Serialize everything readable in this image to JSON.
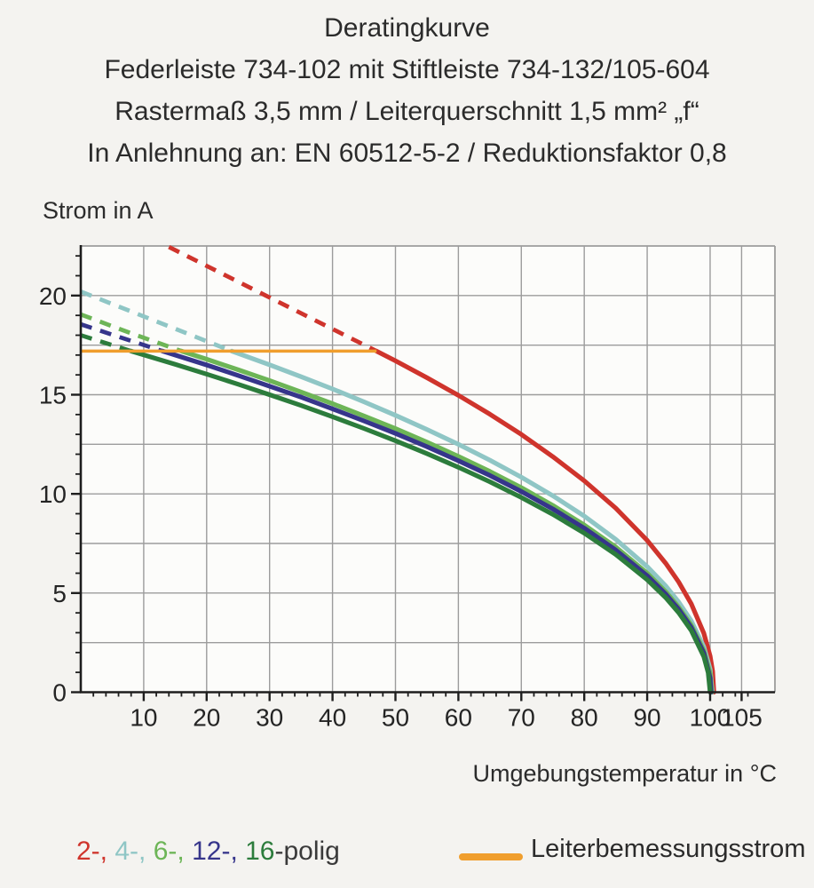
{
  "header": {
    "line1": "Deratingkurve",
    "line2": "Federleiste 734-102 mit Stiftleiste 734-132/105-604",
    "line3": "Rastermaß 3,5 mm / Leiterquerschnitt 1,5 mm² „f“",
    "line4": "In Anlehnung an: EN 60512-5-2 / Reduktionsfaktor 0,8"
  },
  "chart_data": {
    "type": "line",
    "title": "Deratingkurve",
    "xlabel": "Umgebungstemperatur in °C",
    "ylabel": "Strom in A",
    "xlim": [
      0,
      110.3
    ],
    "ylim": [
      0,
      22.5
    ],
    "x_major_ticks": [
      10,
      20,
      30,
      40,
      50,
      60,
      70,
      80,
      90,
      100,
      105
    ],
    "x_minor_step": 2,
    "y_major_ticks": [
      0,
      5,
      10,
      15,
      20
    ],
    "y_grid_step": 2.5,
    "y_minor_step": 1,
    "grid": true,
    "legend_position": "bottom",
    "colors": {
      "grid": "#9c9c9c",
      "axis": "#1e1e1e",
      "tick_text": "#242424"
    },
    "rated_current_line": {
      "label": "Leiterbemessungsstrom",
      "color": "#f09e2d",
      "value": 17.2,
      "x_range": [
        0,
        47
      ]
    },
    "series": [
      {
        "name": "2-polig",
        "color": "#cf342c",
        "dashed_points": [
          [
            14,
            22.45
          ],
          [
            25,
            20.7
          ],
          [
            36,
            18.95
          ],
          [
            47,
            17.2
          ]
        ],
        "solid_points": [
          [
            47,
            17.2
          ],
          [
            50,
            16.71
          ],
          [
            55,
            15.86
          ],
          [
            60,
            14.97
          ],
          [
            65,
            14.02
          ],
          [
            70,
            13.0
          ],
          [
            75,
            11.88
          ],
          [
            80,
            10.66
          ],
          [
            85,
            9.28
          ],
          [
            90,
            7.65
          ],
          [
            93,
            6.48
          ],
          [
            95,
            5.56
          ],
          [
            97,
            4.46
          ],
          [
            99,
            2.97
          ],
          [
            100,
            1.82
          ],
          [
            100.4,
            1.06
          ],
          [
            100.6,
            0
          ]
        ]
      },
      {
        "name": "4-polig",
        "color": "#8fc6c5",
        "dashed_points": [
          [
            0,
            20.2
          ],
          [
            12,
            18.7
          ],
          [
            24,
            17.2
          ]
        ],
        "solid_points": [
          [
            24,
            17.2
          ],
          [
            30,
            16.51
          ],
          [
            35,
            15.91
          ],
          [
            40,
            15.29
          ],
          [
            45,
            14.64
          ],
          [
            50,
            13.96
          ],
          [
            55,
            13.25
          ],
          [
            60,
            12.5
          ],
          [
            65,
            11.7
          ],
          [
            70,
            10.84
          ],
          [
            75,
            9.91
          ],
          [
            80,
            8.88
          ],
          [
            85,
            7.71
          ],
          [
            90,
            6.33
          ],
          [
            93,
            5.34
          ],
          [
            95,
            4.55
          ],
          [
            97,
            3.6
          ],
          [
            99,
            2.29
          ],
          [
            100,
            1.16
          ],
          [
            100.35,
            0
          ]
        ]
      },
      {
        "name": "6-polig",
        "color": "#6db557",
        "dashed_points": [
          [
            0,
            19.05
          ],
          [
            8,
            18.1
          ],
          [
            16,
            17.2
          ]
        ],
        "solid_points": [
          [
            16,
            17.2
          ],
          [
            20,
            16.79
          ],
          [
            25,
            16.26
          ],
          [
            30,
            15.71
          ],
          [
            35,
            15.14
          ],
          [
            40,
            14.55
          ],
          [
            45,
            13.93
          ],
          [
            50,
            13.29
          ],
          [
            55,
            12.61
          ],
          [
            60,
            11.89
          ],
          [
            65,
            11.13
          ],
          [
            70,
            10.31
          ],
          [
            75,
            9.42
          ],
          [
            80,
            8.43
          ],
          [
            85,
            7.32
          ],
          [
            90,
            6.0
          ],
          [
            93,
            5.05
          ],
          [
            95,
            4.29
          ],
          [
            97,
            3.38
          ],
          [
            99,
            2.1
          ],
          [
            100,
            0.94
          ],
          [
            100.25,
            0
          ]
        ]
      },
      {
        "name": "12-polig",
        "color": "#36358b",
        "dashed_points": [
          [
            0,
            18.55
          ],
          [
            6.5,
            17.87
          ],
          [
            13,
            17.2
          ]
        ],
        "solid_points": [
          [
            13,
            17.2
          ],
          [
            20,
            16.5
          ],
          [
            25,
            15.97
          ],
          [
            30,
            15.43
          ],
          [
            35,
            14.88
          ],
          [
            40,
            14.29
          ],
          [
            45,
            13.68
          ],
          [
            50,
            13.05
          ],
          [
            55,
            12.38
          ],
          [
            60,
            11.67
          ],
          [
            65,
            10.93
          ],
          [
            70,
            10.12
          ],
          [
            75,
            9.24
          ],
          [
            80,
            8.27
          ],
          [
            85,
            7.17
          ],
          [
            90,
            5.87
          ],
          [
            93,
            4.93
          ],
          [
            95,
            4.18
          ],
          [
            97,
            3.27
          ],
          [
            99,
            1.98
          ],
          [
            100,
            0.71
          ],
          [
            100.15,
            0
          ]
        ]
      },
      {
        "name": "16-polig",
        "color": "#2c7c3c",
        "dashed_points": [
          [
            0,
            18.0
          ],
          [
            8,
            17.2
          ]
        ],
        "solid_points": [
          [
            8,
            17.2
          ],
          [
            15,
            16.53
          ],
          [
            20,
            16.04
          ],
          [
            25,
            15.53
          ],
          [
            30,
            15.0
          ],
          [
            35,
            14.46
          ],
          [
            40,
            13.89
          ],
          [
            45,
            13.3
          ],
          [
            50,
            12.68
          ],
          [
            55,
            12.03
          ],
          [
            60,
            11.34
          ],
          [
            65,
            10.61
          ],
          [
            70,
            9.82
          ],
          [
            75,
            8.97
          ],
          [
            80,
            8.02
          ],
          [
            85,
            6.95
          ],
          [
            90,
            5.67
          ],
          [
            93,
            4.75
          ],
          [
            95,
            4.01
          ],
          [
            97,
            3.11
          ],
          [
            99,
            1.79
          ],
          [
            99.7,
            0.98
          ],
          [
            100,
            0
          ]
        ]
      }
    ]
  },
  "legend": {
    "pole_segments": [
      {
        "text": "2-, ",
        "color": "#cf342c"
      },
      {
        "text": "4-, ",
        "color": "#8fc6c5"
      },
      {
        "text": "6-, ",
        "color": "#6db557"
      },
      {
        "text": "12-, ",
        "color": "#36358b"
      },
      {
        "text": "16",
        "color": "#2c7c3c"
      },
      {
        "text": "-polig",
        "color": "#3a3a3a"
      }
    ],
    "rated_label": "Leiterbemessungsstrom"
  }
}
